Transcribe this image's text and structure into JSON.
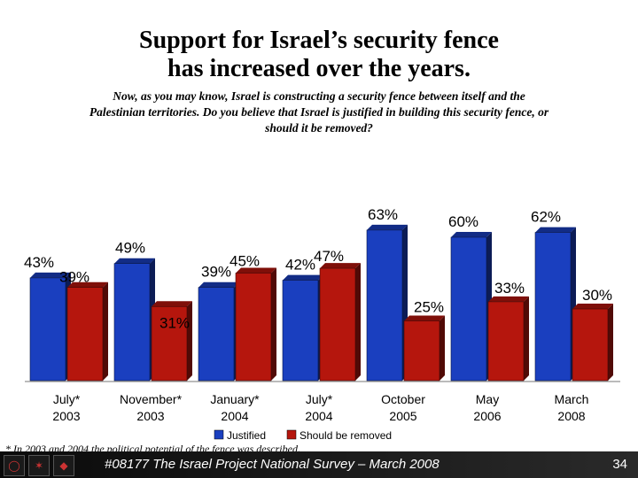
{
  "title": {
    "line1": "Support for Israel’s security fence",
    "line2": "has increased over the years."
  },
  "question": {
    "line1": "Now, as you may know, Israel is constructing a security fence between itself and the",
    "line2": "Palestinian territories. Do you believe that Israel is justified in building this security fence, or",
    "line3": "should it be removed?"
  },
  "colors": {
    "justified": "#1a3fbf",
    "removed": "#b5160d"
  },
  "chart_data": {
    "type": "bar",
    "title": "Support for Israel’s security fence has increased over the years.",
    "xlabel": "",
    "ylabel": "",
    "ylim": [
      0,
      100
    ],
    "categories": [
      [
        "July*",
        "2003"
      ],
      [
        "November*",
        "2003"
      ],
      [
        "January*",
        "2004"
      ],
      [
        "July*",
        "2004"
      ],
      [
        "October",
        "2005"
      ],
      [
        "May",
        "2006"
      ],
      [
        "March",
        "2008"
      ]
    ],
    "series": [
      {
        "name": "Justified",
        "values": [
          43,
          49,
          39,
          42,
          63,
          60,
          62
        ]
      },
      {
        "name": "Should be removed",
        "values": [
          39,
          31,
          45,
          47,
          25,
          33,
          30
        ]
      }
    ]
  },
  "footnote": "* In 2003 and 2004 the political potential of the fence was described.",
  "source": "#08177 The Israel Project National Survey – March 2008",
  "page_number": "34",
  "logo_icons": [
    "ring-logo-icon",
    "star-logo-icon",
    "tip-logo-icon"
  ]
}
